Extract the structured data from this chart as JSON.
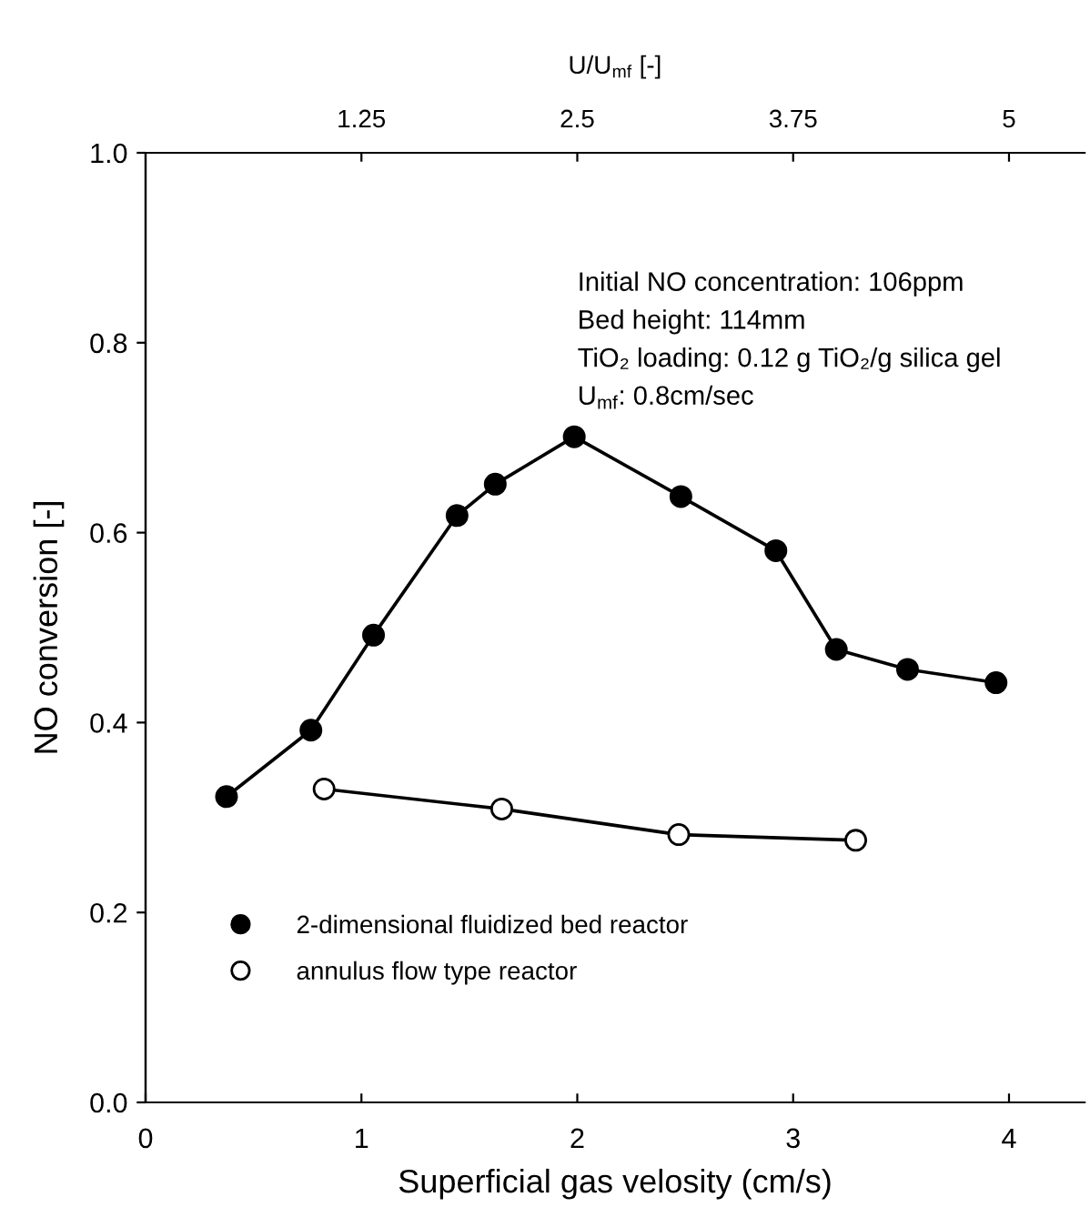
{
  "chart_data": {
    "type": "line",
    "xlabel": "Superficial gas velosity (cm/s)",
    "ylabel": "NO conversion [-]",
    "x2label": "U/U$_{mf}$ [-]",
    "annotations": [
      "Initial NO concentration: 106ppm",
      "Bed height: 114mm",
      "TiO₂ loading: 0.12 g TiO₂/g silica gel",
      "U$_{mf}$: 0.8cm/sec"
    ],
    "xlim": [
      0,
      4.35
    ],
    "xticks": [
      0,
      1,
      2,
      3,
      4
    ],
    "x2lim": [
      0,
      5.4375
    ],
    "x2ticks": [
      1.25,
      2.5,
      3.75,
      5
    ],
    "ylim": [
      0,
      1
    ],
    "yticks": [
      {
        "value": 0,
        "label": "0.0"
      },
      {
        "value": 0.2,
        "label": "0.2"
      },
      {
        "value": 0.4,
        "label": "0.4"
      },
      {
        "value": 0.6,
        "label": "0.6"
      },
      {
        "value": 0.8,
        "label": "0.8"
      },
      {
        "value": 1,
        "label": "1.0"
      }
    ],
    "grid": false,
    "legend": "bottom left",
    "marker": "circle",
    "line_style": "solid",
    "series": [
      {
        "name": "2-dimensional fluidized bed reactor",
        "color": "#000000",
        "x": [
          0.375,
          0.766,
          1.056,
          1.443,
          1.62,
          1.986,
          2.48,
          2.92,
          3.2,
          3.53,
          3.94
        ],
        "values": [
          0.322,
          0.392,
          0.492,
          0.618,
          0.651,
          0.701,
          0.638,
          0.581,
          0.477,
          0.456,
          0.442
        ]
      },
      {
        "name": "annulus flow type reactor",
        "color": "#ffffff",
        "x": [
          0.827,
          1.65,
          2.47,
          3.29
        ],
        "values": [
          0.33,
          0.309,
          0.282,
          0.276
        ]
      }
    ]
  }
}
